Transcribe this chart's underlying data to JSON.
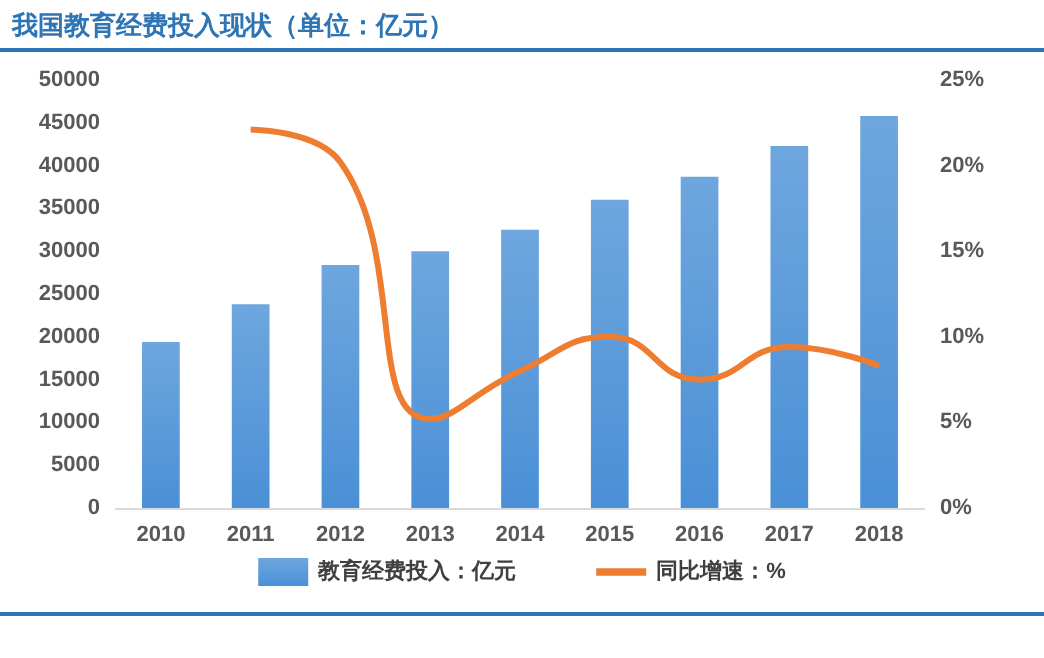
{
  "chart_data": {
    "type": "bar",
    "title": "我国教育经费投入现状（单位：亿元）",
    "categories": [
      "2010",
      "2011",
      "2012",
      "2013",
      "2014",
      "2015",
      "2016",
      "2017",
      "2018"
    ],
    "series": [
      {
        "name": "教育经费投入：亿元",
        "color": "#4a90d6",
        "values": [
          19400,
          23800,
          28400,
          30000,
          32500,
          36000,
          38700,
          42300,
          45800
        ]
      },
      {
        "name": "同比增速：%",
        "type": "line",
        "axis": "y2",
        "color": "#ed7d31",
        "values": [
          null,
          22.1,
          20.2,
          5.2,
          8.0,
          10.0,
          7.5,
          9.4,
          8.3
        ]
      }
    ],
    "ylim": [
      0,
      50000
    ],
    "yticks": [
      0,
      5000,
      10000,
      15000,
      20000,
      25000,
      30000,
      35000,
      40000,
      45000,
      50000
    ],
    "y2lim": [
      0,
      25
    ],
    "y2ticks": [
      {
        "value": 0,
        "label": "0%"
      },
      {
        "value": 5,
        "label": "5%"
      },
      {
        "value": 10,
        "label": "10%"
      },
      {
        "value": 15,
        "label": "15%"
      },
      {
        "value": 20,
        "label": "20%"
      },
      {
        "value": 25,
        "label": "25%"
      }
    ],
    "grid": false,
    "legend": "bottom",
    "marker": "none"
  }
}
